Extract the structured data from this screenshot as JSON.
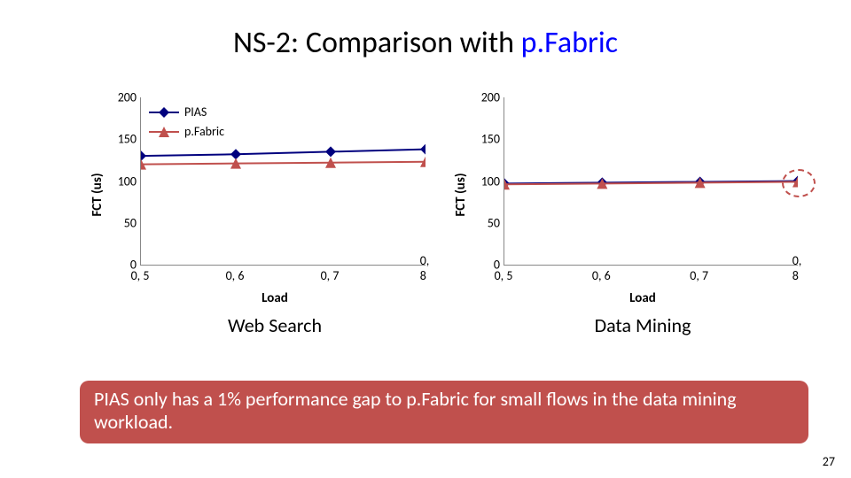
{
  "title_prefix": "NS-2: Comparison with ",
  "title_highlight": "p.Fabric",
  "page_number": "27",
  "callout_text": "PIAS only has a 1% performance gap to p.Fabric for small flows in the data mining workload.",
  "series": {
    "pias": {
      "label": "PIAS",
      "color": "#00007e",
      "marker": "diamond"
    },
    "pfabric": {
      "label": "p.Fabric",
      "color": "#c0504d",
      "marker": "triangle"
    }
  },
  "axis": {
    "ylabel": "FCT (us)",
    "xlabel": "Load",
    "ylim": [
      0,
      200
    ],
    "ytick_step": 50,
    "xticks": [
      "0, 5",
      "0, 6",
      "0, 7",
      "0, 8"
    ],
    "xvals": [
      0.5,
      0.6,
      0.7,
      0.8
    ],
    "xlim": [
      0.5,
      0.8
    ],
    "grid_color": "#888888",
    "tick_fontsize": 14,
    "label_fontsize": 15
  },
  "charts": [
    {
      "subtitle": "Web Search",
      "show_legend": true,
      "show_highlight": false,
      "data": {
        "pias": [
          130,
          132,
          135,
          138
        ],
        "pfabric": [
          120,
          121,
          122,
          123
        ]
      }
    },
    {
      "subtitle": "Data Mining",
      "show_legend": false,
      "show_highlight": true,
      "highlight_point_index": 3,
      "data": {
        "pias": [
          97,
          98,
          99,
          100
        ],
        "pfabric": [
          96,
          97,
          98,
          99
        ]
      }
    }
  ],
  "marker_size": 12,
  "line_width": 2
}
